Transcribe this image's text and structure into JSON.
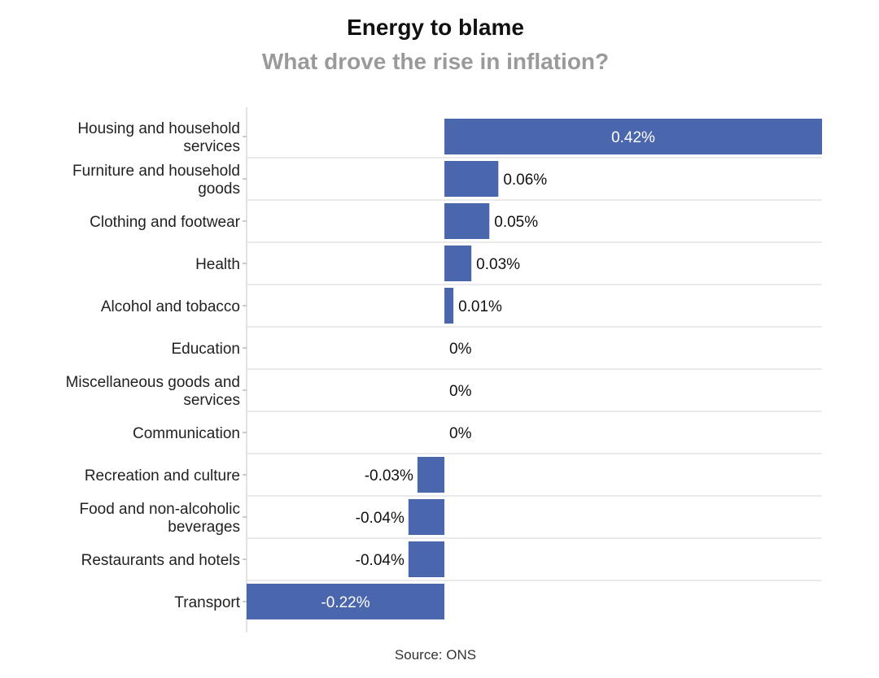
{
  "chart_data": {
    "type": "bar",
    "orientation": "horizontal",
    "title": "Energy to blame",
    "subtitle": "What drove the rise in inflation?",
    "source": "Source: ONS",
    "categories": [
      "Housing and household services",
      "Furniture and household goods",
      "Clothing and footwear",
      "Health",
      "Alcohol and tobacco",
      "Education",
      "Miscellaneous goods and services",
      "Communication",
      "Recreation and culture",
      "Food and non-alcoholic beverages",
      "Restaurants and hotels",
      "Transport"
    ],
    "category_lines": [
      [
        "Housing and household",
        "services"
      ],
      [
        "Furniture and household",
        "goods"
      ],
      [
        "Clothing and footwear"
      ],
      [
        "Health"
      ],
      [
        "Alcohol and tobacco"
      ],
      [
        "Education"
      ],
      [
        "Miscellaneous goods and",
        "services"
      ],
      [
        "Communication"
      ],
      [
        "Recreation and culture"
      ],
      [
        "Food and non-alcoholic",
        "beverages"
      ],
      [
        "Restaurants and hotels"
      ],
      [
        "Transport"
      ]
    ],
    "values": [
      0.42,
      0.06,
      0.05,
      0.03,
      0.01,
      0,
      0,
      0,
      -0.03,
      -0.04,
      -0.04,
      -0.22
    ],
    "value_labels": [
      "0.42%",
      "0.06%",
      "0.05%",
      "0.03%",
      "0.01%",
      "0%",
      "0%",
      "0%",
      "-0.03%",
      "-0.04%",
      "-0.04%",
      "-0.22%"
    ],
    "xlim": [
      -0.22,
      0.42
    ],
    "bar_color": "#4a66ad",
    "grid": false
  }
}
